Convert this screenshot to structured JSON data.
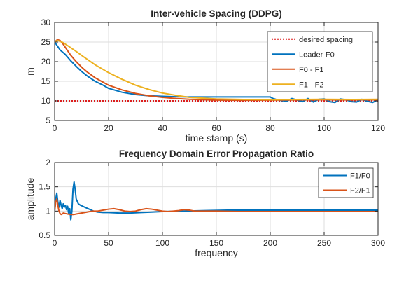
{
  "chart_data": [
    {
      "type": "line",
      "title": "Inter-vehicle Spacing (DDPG)",
      "xlabel": "time stamp (s)",
      "ylabel": "m",
      "xlim": [
        0,
        120
      ],
      "ylim": [
        5,
        30
      ],
      "xticks": [
        0,
        20,
        40,
        60,
        80,
        100,
        120
      ],
      "yticks": [
        5,
        10,
        15,
        20,
        25,
        30
      ],
      "grid": true,
      "legend_position": "top-right",
      "series": [
        {
          "name": "desired spacing",
          "color": "#dd1d1d",
          "style": "dotted",
          "x": [
            0,
            120
          ],
          "y": [
            10,
            10
          ]
        },
        {
          "name": "Leader-F0",
          "color": "#0072bd",
          "style": "solid",
          "x": [
            0,
            1,
            2,
            4,
            6,
            8,
            10,
            12,
            15,
            18,
            20,
            25,
            30,
            35,
            40,
            45,
            50,
            60,
            70,
            80,
            81,
            82,
            84,
            86,
            88,
            90,
            92,
            94,
            96,
            98,
            100,
            102,
            104,
            106,
            108,
            110,
            112,
            114,
            116,
            118,
            120
          ],
          "y": [
            25,
            24,
            23,
            21.8,
            20.2,
            18.8,
            17.5,
            16.4,
            15,
            14,
            13.2,
            12.2,
            11.6,
            11.3,
            11.15,
            11.05,
            11,
            11,
            11,
            11,
            10.6,
            10.4,
            10.1,
            9.9,
            10.6,
            10.2,
            9.8,
            10.6,
            9.7,
            10.4,
            10.5,
            9.8,
            9.6,
            10.5,
            10.3,
            9.8,
            9.7,
            10.4,
            9.9,
            9.6,
            10.3
          ]
        },
        {
          "name": "F0 - F1",
          "color": "#d95319",
          "style": "solid",
          "x": [
            0,
            1,
            2,
            3,
            4,
            6,
            8,
            10,
            12,
            15,
            20,
            25,
            30,
            35,
            40,
            45,
            50,
            60,
            70,
            80,
            90,
            100,
            110,
            120
          ],
          "y": [
            25,
            25.6,
            25.4,
            24.6,
            23.6,
            21.6,
            20,
            18.6,
            17.4,
            15.9,
            14,
            12.8,
            11.9,
            11.3,
            10.9,
            10.6,
            10.4,
            10.2,
            10.15,
            10.2,
            10.25,
            10.3,
            10.25,
            10.3
          ]
        },
        {
          "name": "F1 - F2",
          "color": "#edb120",
          "style": "solid",
          "x": [
            0,
            1,
            2,
            3,
            5,
            8,
            10,
            15,
            20,
            25,
            30,
            35,
            40,
            45,
            50,
            60,
            70,
            80,
            90,
            100,
            110,
            120
          ],
          "y": [
            25,
            25.4,
            25.2,
            24.9,
            24,
            22.6,
            21.6,
            19.2,
            17.2,
            15.5,
            14,
            12.9,
            12,
            11.4,
            10.9,
            10.5,
            10.35,
            10.3,
            10.35,
            10.4,
            10.35,
            10.4
          ]
        }
      ]
    },
    {
      "type": "line",
      "title": "Frequency Domain Error Propagation Ratio",
      "xlabel": "frequency",
      "ylabel": "amplitude",
      "xlim": [
        0,
        300
      ],
      "ylim": [
        0.5,
        2
      ],
      "xticks": [
        0,
        50,
        100,
        150,
        200,
        250,
        300
      ],
      "yticks": [
        0.5,
        1,
        1.5,
        2
      ],
      "grid": true,
      "legend_position": "top-right",
      "series": [
        {
          "name": "F1/F0",
          "color": "#0072bd",
          "style": "solid",
          "x": [
            0,
            1,
            2,
            3,
            4,
            5,
            6,
            7,
            8,
            9,
            10,
            11,
            12,
            13,
            14,
            15,
            16,
            17,
            18,
            19,
            20,
            21,
            22,
            24,
            26,
            28,
            30,
            33,
            36,
            40,
            45,
            50,
            60,
            70,
            80,
            90,
            100,
            120,
            140,
            160,
            200,
            250,
            300
          ],
          "y": [
            1.0,
            1.25,
            1.37,
            1.18,
            1.08,
            1.22,
            1.12,
            1.05,
            1.15,
            1.08,
            1.12,
            1.03,
            1.1,
            0.95,
            1.05,
            0.82,
            1.0,
            1.45,
            1.6,
            1.45,
            1.25,
            1.2,
            1.15,
            1.12,
            1.1,
            1.08,
            1.06,
            1.03,
            1.0,
            0.98,
            0.97,
            0.97,
            0.96,
            0.96,
            0.97,
            0.98,
            0.99,
            1.0,
            1.01,
            1.02,
            1.02,
            1.02,
            1.02
          ]
        },
        {
          "name": "F2/F1",
          "color": "#d95319",
          "style": "solid",
          "x": [
            0,
            1,
            2,
            3,
            4,
            5,
            6,
            7,
            8,
            10,
            12,
            15,
            18,
            20,
            25,
            30,
            35,
            40,
            45,
            50,
            55,
            60,
            65,
            70,
            75,
            80,
            85,
            90,
            95,
            100,
            105,
            110,
            115,
            120,
            125,
            130,
            140,
            150,
            170,
            200,
            250,
            300
          ],
          "y": [
            1.0,
            1.18,
            1.25,
            1.12,
            1.0,
            0.95,
            0.93,
            0.94,
            0.96,
            0.95,
            0.94,
            0.93,
            0.93,
            0.94,
            0.96,
            0.98,
            1.0,
            1.0,
            1.02,
            1.04,
            1.05,
            1.03,
            1.0,
            0.99,
            1.0,
            1.03,
            1.05,
            1.04,
            1.02,
            1.0,
            0.99,
            1.0,
            1.01,
            1.03,
            1.02,
            1.0,
            1.0,
            1.0,
            0.99,
            0.99,
            0.99,
            0.99
          ]
        }
      ]
    }
  ]
}
